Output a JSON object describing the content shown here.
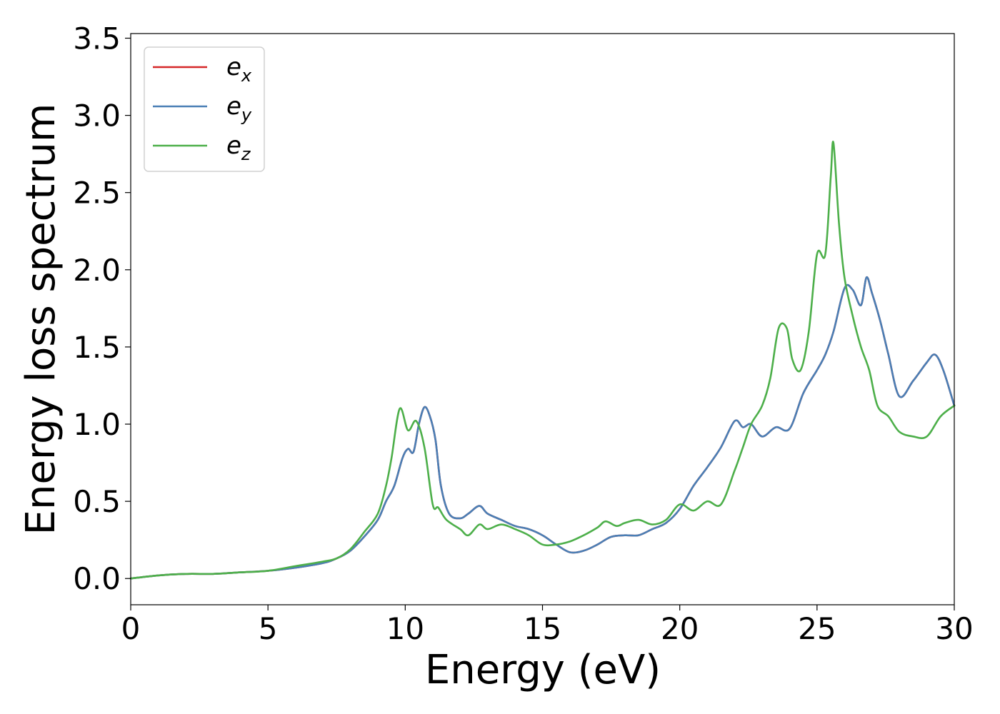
{
  "chart_data": {
    "type": "line",
    "title": "",
    "xlabel": "Energy (eV)",
    "ylabel": "Energy loss spectrum",
    "xlim": [
      0,
      30
    ],
    "ylim": [
      -0.17,
      3.53
    ],
    "xticks": [
      0,
      5,
      10,
      15,
      20,
      25,
      30
    ],
    "xtick_labels": [
      "0",
      "5",
      "10",
      "15",
      "20",
      "25",
      "30"
    ],
    "yticks": [
      0.0,
      0.5,
      1.0,
      1.5,
      2.0,
      2.5,
      3.0,
      3.5
    ],
    "ytick_labels": [
      "0.0",
      "0.5",
      "1.0",
      "1.5",
      "2.0",
      "2.5",
      "3.0",
      "3.5"
    ],
    "grid": false,
    "legend": {
      "position": "top-left"
    },
    "series": [
      {
        "name": "e",
        "subscript": "x",
        "color": "#d62728",
        "x": [
          0,
          1,
          2,
          3,
          4,
          5,
          6,
          7,
          7.5,
          8,
          8.5,
          9,
          9.3,
          9.6,
          9.9,
          10.1,
          10.3,
          10.5,
          10.7,
          10.9,
          11.1,
          11.3,
          11.6,
          12,
          12.3,
          12.7,
          13,
          13.5,
          14,
          14.5,
          15,
          15.5,
          16,
          16.5,
          17,
          17.5,
          18,
          18.5,
          19,
          19.5,
          20,
          20.5,
          21,
          21.5,
          22,
          22.3,
          22.6,
          23,
          23.5,
          24,
          24.5,
          25,
          25.3,
          25.6,
          26,
          26.3,
          26.6,
          26.8,
          27,
          27.3,
          27.6,
          28,
          28.5,
          29,
          29.3,
          29.6,
          30
        ],
        "values": [
          0,
          0.02,
          0.03,
          0.03,
          0.04,
          0.05,
          0.07,
          0.1,
          0.13,
          0.18,
          0.27,
          0.38,
          0.5,
          0.6,
          0.78,
          0.84,
          0.82,
          1.0,
          1.11,
          1.05,
          0.9,
          0.6,
          0.42,
          0.39,
          0.42,
          0.47,
          0.42,
          0.38,
          0.34,
          0.32,
          0.28,
          0.22,
          0.17,
          0.18,
          0.22,
          0.27,
          0.28,
          0.28,
          0.32,
          0.36,
          0.45,
          0.6,
          0.72,
          0.85,
          1.02,
          0.98,
          1.0,
          0.92,
          0.98,
          0.97,
          1.2,
          1.35,
          1.45,
          1.6,
          1.88,
          1.87,
          1.77,
          1.95,
          1.85,
          1.67,
          1.45,
          1.18,
          1.28,
          1.4,
          1.45,
          1.35,
          1.12
        ]
      },
      {
        "name": "e",
        "subscript": "y",
        "color": "#4a7fb5",
        "x": [
          0,
          1,
          2,
          3,
          4,
          5,
          6,
          7,
          7.5,
          8,
          8.5,
          9,
          9.3,
          9.6,
          9.9,
          10.1,
          10.3,
          10.5,
          10.7,
          10.9,
          11.1,
          11.3,
          11.6,
          12,
          12.3,
          12.7,
          13,
          13.5,
          14,
          14.5,
          15,
          15.5,
          16,
          16.5,
          17,
          17.5,
          18,
          18.5,
          19,
          19.5,
          20,
          20.5,
          21,
          21.5,
          22,
          22.3,
          22.6,
          23,
          23.5,
          24,
          24.5,
          25,
          25.3,
          25.6,
          26,
          26.3,
          26.6,
          26.8,
          27,
          27.3,
          27.6,
          28,
          28.5,
          29,
          29.3,
          29.6,
          30
        ],
        "values": [
          0,
          0.02,
          0.03,
          0.03,
          0.04,
          0.05,
          0.07,
          0.1,
          0.13,
          0.18,
          0.27,
          0.38,
          0.5,
          0.6,
          0.78,
          0.84,
          0.82,
          1.0,
          1.11,
          1.05,
          0.9,
          0.6,
          0.42,
          0.39,
          0.42,
          0.47,
          0.42,
          0.38,
          0.34,
          0.32,
          0.28,
          0.22,
          0.17,
          0.18,
          0.22,
          0.27,
          0.28,
          0.28,
          0.32,
          0.36,
          0.45,
          0.6,
          0.72,
          0.85,
          1.02,
          0.98,
          1.0,
          0.92,
          0.98,
          0.97,
          1.2,
          1.35,
          1.45,
          1.6,
          1.88,
          1.87,
          1.77,
          1.95,
          1.85,
          1.67,
          1.45,
          1.18,
          1.28,
          1.4,
          1.45,
          1.35,
          1.12
        ]
      },
      {
        "name": "e",
        "subscript": "z",
        "color": "#4daf4a",
        "x": [
          0,
          1,
          2,
          3,
          4,
          5,
          6,
          7,
          7.5,
          8,
          8.5,
          9,
          9.3,
          9.5,
          9.8,
          10.1,
          10.4,
          10.7,
          11.0,
          11.2,
          11.5,
          12,
          12.3,
          12.7,
          13,
          13.5,
          14,
          14.5,
          15,
          15.5,
          16,
          16.5,
          17,
          17.3,
          17.7,
          18,
          18.5,
          19,
          19.5,
          20,
          20.5,
          21,
          21.5,
          22,
          22.3,
          22.6,
          23,
          23.3,
          23.6,
          23.9,
          24.1,
          24.4,
          24.7,
          25,
          25.3,
          25.5,
          25.6,
          25.8,
          26,
          26.3,
          26.6,
          26.9,
          27.2,
          27.6,
          28,
          28.5,
          29,
          29.5,
          30
        ],
        "values": [
          0,
          0.02,
          0.03,
          0.03,
          0.04,
          0.05,
          0.08,
          0.11,
          0.13,
          0.19,
          0.3,
          0.42,
          0.6,
          0.78,
          1.1,
          0.96,
          1.02,
          0.85,
          0.48,
          0.46,
          0.38,
          0.32,
          0.28,
          0.35,
          0.32,
          0.35,
          0.32,
          0.28,
          0.22,
          0.22,
          0.24,
          0.28,
          0.33,
          0.37,
          0.34,
          0.36,
          0.38,
          0.35,
          0.38,
          0.48,
          0.44,
          0.5,
          0.48,
          0.7,
          0.85,
          1.0,
          1.12,
          1.3,
          1.62,
          1.62,
          1.42,
          1.35,
          1.6,
          2.1,
          2.1,
          2.6,
          2.82,
          2.3,
          1.95,
          1.7,
          1.5,
          1.35,
          1.12,
          1.05,
          0.95,
          0.92,
          0.92,
          1.05,
          1.12
        ]
      }
    ]
  }
}
